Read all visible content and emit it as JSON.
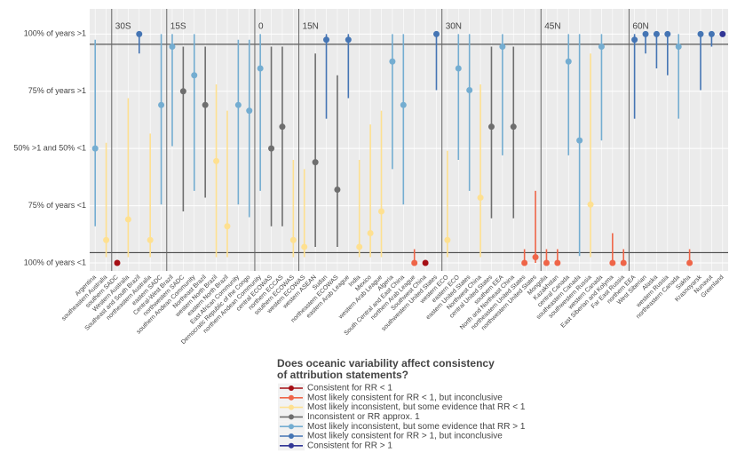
{
  "chart_data": {
    "type": "pointrange",
    "categories": [
      "Argentina",
      "southeastern Australia",
      "southern SADC",
      "Western Australia",
      "Southeast and South Brazil",
      "northeastern Australia",
      "eastern SADC",
      "Central-West Brazil",
      "northwestern SADC",
      "southern Andean Community",
      "Northeast Brazil",
      "western North Brazil",
      "eastern North Brazil",
      "East African Community",
      "Democratic Republic of the Congo",
      "northern Andean Community",
      "central ECOWAS",
      "northern ECCAS",
      "southern ECOWAS",
      "western ECOWAS",
      "western ASEAN",
      "Sudan",
      "northeastern ECOWAS",
      "eastern Arab League",
      "India",
      "Mexico",
      "western Arab League",
      "Algeria",
      "South Central and East China",
      "northern Arab League",
      "Southwest China",
      "southwestern United States",
      "western ECO",
      "eastern ECO",
      "eastern United States",
      "Northwest China",
      "central United States",
      "southern EEA",
      "North and Northeast China",
      "northeastern United States",
      "northwestern United States",
      "Mongolia",
      "Kazakhstan",
      "central Canada",
      "southeastern Canada",
      "southwestern Russia",
      "western Canada",
      "East Siberian and Kolyma",
      "Far East Russia",
      "northern EEA",
      "West Siberian",
      "Alaska",
      "western Russia",
      "northeastern Canada",
      "Sakha",
      "Krasnoyarsk",
      "Nunavut",
      "Greenland"
    ],
    "values": [
      0,
      -0.8,
      -1,
      -0.62,
      1,
      -0.8,
      0.38,
      0.89,
      0.5,
      0.64,
      0.38,
      -0.11,
      -0.68,
      0.38,
      0.33,
      0.7,
      0,
      0.19,
      -0.8,
      -0.86,
      -0.12,
      0.95,
      -0.36,
      0.95,
      -0.86,
      -0.74,
      -0.55,
      0.76,
      0.38,
      -1,
      -1,
      1,
      -0.8,
      0.7,
      0.51,
      -0.43,
      0.19,
      0.89,
      0.19,
      -1,
      -0.95,
      -1,
      -1,
      0.76,
      0.07,
      -0.49,
      0.89,
      -1,
      -1,
      0.95,
      1,
      1,
      1,
      0.89,
      -1,
      1,
      1,
      1
    ],
    "high": [
      0.95,
      0.05,
      null,
      0.44,
      1,
      0.13,
      1,
      1,
      0.89,
      1,
      0.89,
      0.56,
      0.33,
      0.95,
      0.95,
      1,
      0.89,
      0.89,
      -0.1,
      -0.18,
      0.83,
      1,
      0.64,
      1,
      -0.1,
      0.21,
      0.33,
      1,
      1,
      -0.88,
      null,
      1,
      -0.02,
      1,
      1,
      0.56,
      0.89,
      1,
      0.89,
      -0.88,
      -0.37,
      -0.88,
      -0.88,
      1,
      1,
      0.83,
      1,
      -0.74,
      -0.88,
      1,
      1,
      1,
      1,
      1,
      -0.88,
      1,
      1,
      null
    ],
    "low": [
      -0.68,
      -0.95,
      null,
      -0.95,
      0.83,
      -0.95,
      -0.49,
      0.02,
      -0.55,
      -0.37,
      -0.43,
      -0.95,
      -0.95,
      -0.49,
      -0.6,
      -0.37,
      -0.68,
      -0.68,
      -0.95,
      -0.95,
      -0.86,
      0.26,
      -0.86,
      0.44,
      -0.95,
      -0.95,
      -0.95,
      -0.18,
      -0.49,
      -1,
      null,
      0.51,
      -0.95,
      -0.1,
      -0.37,
      -0.95,
      -0.61,
      -0.06,
      -0.61,
      -1,
      -1,
      -1,
      -1,
      -0.06,
      -0.94,
      -0.95,
      0.07,
      -1,
      -1,
      0.26,
      0.83,
      0.7,
      0.64,
      0.26,
      -1,
      0.51,
      0.89,
      null
    ],
    "colors": [
      "#74add1",
      "#fee090",
      "#a50f15",
      "#fee090",
      "#4575b4",
      "#fee090",
      "#74add1",
      "#74add1",
      "#6e6e6e",
      "#74add1",
      "#6e6e6e",
      "#fee090",
      "#fee090",
      "#74add1",
      "#74add1",
      "#74add1",
      "#6e6e6e",
      "#6e6e6e",
      "#fee090",
      "#fee090",
      "#6e6e6e",
      "#4575b4",
      "#6e6e6e",
      "#4575b4",
      "#fee090",
      "#fee090",
      "#fee090",
      "#74add1",
      "#74add1",
      "#ef6548",
      "#a50f15",
      "#4575b4",
      "#fee090",
      "#74add1",
      "#74add1",
      "#fee090",
      "#6e6e6e",
      "#74add1",
      "#6e6e6e",
      "#ef6548",
      "#ef6548",
      "#ef6548",
      "#ef6548",
      "#74add1",
      "#74add1",
      "#fee090",
      "#74add1",
      "#ef6548",
      "#ef6548",
      "#4575b4",
      "#4575b4",
      "#4575b4",
      "#4575b4",
      "#74add1",
      "#ef6548",
      "#4575b4",
      "#4575b4",
      "#313695"
    ],
    "ylim": [
      -1.07,
      1.22
    ],
    "yticks": [
      {
        "value": 1,
        "label": "100% of years >1"
      },
      {
        "value": 0.5,
        "label": "75% of years >1"
      },
      {
        "value": 0,
        "label": "50% >1 and 50% <1"
      },
      {
        "value": -0.5,
        "label": "75% of years <1"
      },
      {
        "value": -1,
        "label": "100% of years <1"
      }
    ],
    "grid": true,
    "reference_lines": [
      0.91,
      -0.91
    ],
    "latitude_lines": [
      {
        "label": "30S",
        "position": 1.5
      },
      {
        "label": "15S",
        "position": 6.5
      },
      {
        "label": "0",
        "position": 14.5
      },
      {
        "label": "15N",
        "position": 18.5
      },
      {
        "label": "30N",
        "position": 31.5
      },
      {
        "label": "45N",
        "position": 40.5
      },
      {
        "label": "60N",
        "position": 48.5
      }
    ],
    "legend": {
      "title": [
        "Does oceanic variability affect consistency",
        "of attribution statements?"
      ],
      "items": [
        {
          "name": "Consistent for RR < 1",
          "color": "#a50f15"
        },
        {
          "name": "Most likely consistent for RR < 1, but inconclusive",
          "color": "#ef6548"
        },
        {
          "name": "Most likely inconsistent, but some evidence that RR < 1",
          "color": "#fee090"
        },
        {
          "name": "Inconsistent or RR approx. 1",
          "color": "#6e6e6e"
        },
        {
          "name": "Most likely inconsistent, but some evidence that RR > 1",
          "color": "#74add1"
        },
        {
          "name": "Most likely consistent for RR > 1, but inconclusive",
          "color": "#4575b4"
        },
        {
          "name": "Consistent for RR > 1",
          "color": "#313695"
        }
      ]
    }
  }
}
